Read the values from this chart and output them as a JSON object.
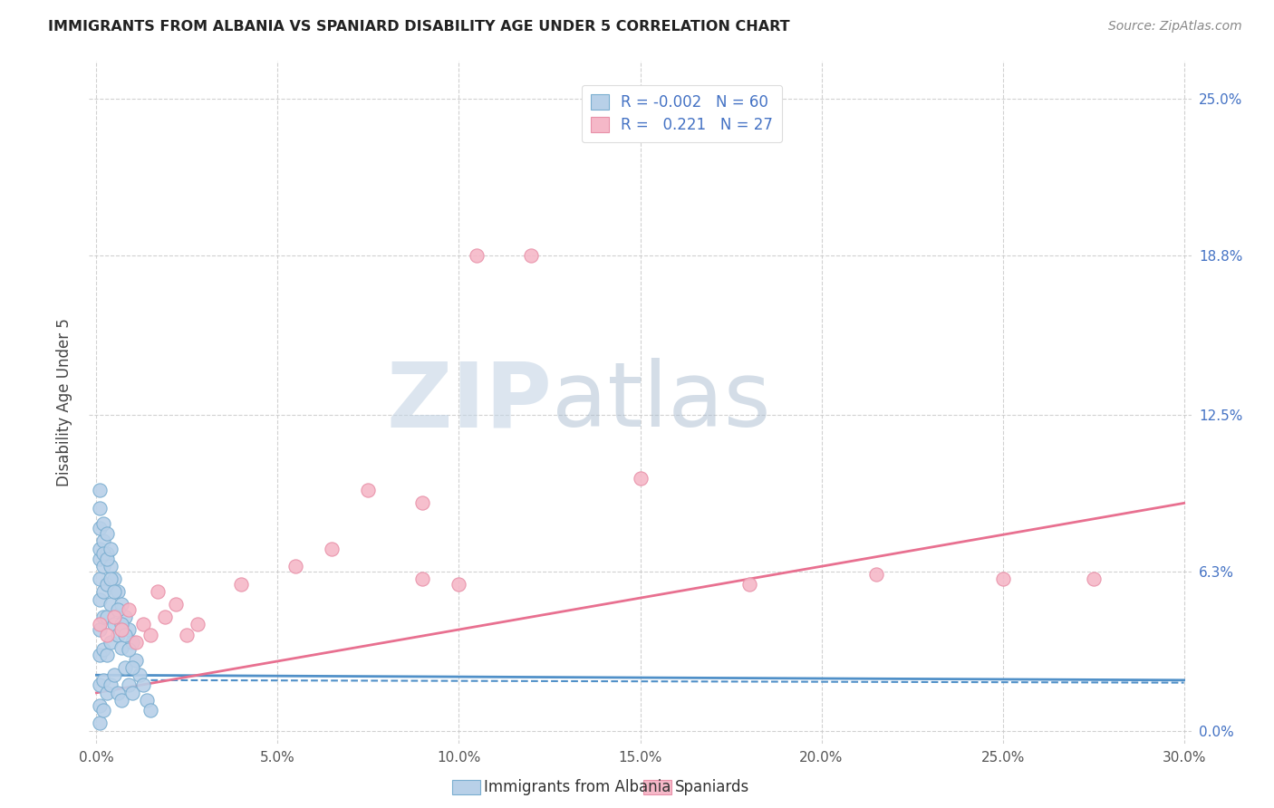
{
  "title": "IMMIGRANTS FROM ALBANIA VS SPANIARD DISABILITY AGE UNDER 5 CORRELATION CHART",
  "source": "Source: ZipAtlas.com",
  "ylabel": "Disability Age Under 5",
  "x_tick_labels": [
    "0.0%",
    "5.0%",
    "10.0%",
    "15.0%",
    "20.0%",
    "25.0%",
    "30.0%"
  ],
  "x_tick_values": [
    0.0,
    0.05,
    0.1,
    0.15,
    0.2,
    0.25,
    0.3
  ],
  "y_tick_labels": [
    "0.0%",
    "6.3%",
    "12.5%",
    "18.8%",
    "25.0%"
  ],
  "y_tick_values": [
    0.0,
    0.063,
    0.125,
    0.188,
    0.25
  ],
  "xlim": [
    -0.002,
    0.302
  ],
  "ylim": [
    -0.005,
    0.265
  ],
  "legend_label_1": "Immigrants from Albania",
  "legend_label_2": "Spaniards",
  "color_albania": "#b8d0e8",
  "color_albania_edge": "#7aaed0",
  "color_spaniard": "#f5b8c8",
  "color_spaniard_edge": "#e890a8",
  "color_albania_line": "#5090c8",
  "color_spaniard_line": "#e87090",
  "color_right_ticks": "#4472c4",
  "watermark_zip": "ZIP",
  "watermark_atlas": "atlas",
  "watermark_color_zip": "#c8d8e8",
  "watermark_color_atlas": "#a8c0d8",
  "albania_x": [
    0.001,
    0.001,
    0.001,
    0.001,
    0.001,
    0.001,
    0.001,
    0.001,
    0.001,
    0.002,
    0.002,
    0.002,
    0.002,
    0.002,
    0.002,
    0.002,
    0.003,
    0.003,
    0.003,
    0.003,
    0.003,
    0.004,
    0.004,
    0.004,
    0.004,
    0.005,
    0.005,
    0.005,
    0.006,
    0.006,
    0.006,
    0.007,
    0.007,
    0.007,
    0.008,
    0.008,
    0.009,
    0.009,
    0.01,
    0.01,
    0.011,
    0.012,
    0.013,
    0.014,
    0.015,
    0.001,
    0.001,
    0.001,
    0.002,
    0.002,
    0.003,
    0.003,
    0.004,
    0.004,
    0.005,
    0.006,
    0.007,
    0.008,
    0.009,
    0.01
  ],
  "albania_y": [
    0.068,
    0.072,
    0.06,
    0.052,
    0.04,
    0.03,
    0.018,
    0.01,
    0.003,
    0.075,
    0.065,
    0.055,
    0.045,
    0.032,
    0.02,
    0.008,
    0.07,
    0.058,
    0.045,
    0.03,
    0.015,
    0.065,
    0.05,
    0.035,
    0.018,
    0.06,
    0.042,
    0.022,
    0.055,
    0.038,
    0.015,
    0.05,
    0.033,
    0.012,
    0.045,
    0.025,
    0.04,
    0.018,
    0.035,
    0.015,
    0.028,
    0.022,
    0.018,
    0.012,
    0.008,
    0.08,
    0.088,
    0.095,
    0.082,
    0.07,
    0.078,
    0.068,
    0.072,
    0.06,
    0.055,
    0.048,
    0.042,
    0.038,
    0.032,
    0.025
  ],
  "spaniard_x": [
    0.001,
    0.003,
    0.005,
    0.007,
    0.009,
    0.011,
    0.013,
    0.015,
    0.017,
    0.019,
    0.022,
    0.025,
    0.028,
    0.04,
    0.055,
    0.065,
    0.075,
    0.09,
    0.105,
    0.12,
    0.09,
    0.1,
    0.15,
    0.18,
    0.215,
    0.25,
    0.275
  ],
  "spaniard_y": [
    0.042,
    0.038,
    0.045,
    0.04,
    0.048,
    0.035,
    0.042,
    0.038,
    0.055,
    0.045,
    0.05,
    0.038,
    0.042,
    0.058,
    0.065,
    0.072,
    0.095,
    0.09,
    0.188,
    0.188,
    0.06,
    0.058,
    0.1,
    0.058,
    0.062,
    0.06,
    0.06
  ],
  "albania_line_x": [
    0.0,
    0.3
  ],
  "albania_line_y": [
    0.022,
    0.02
  ],
  "spaniard_line_x": [
    0.0,
    0.3
  ],
  "spaniard_line_y": [
    0.015,
    0.09
  ]
}
